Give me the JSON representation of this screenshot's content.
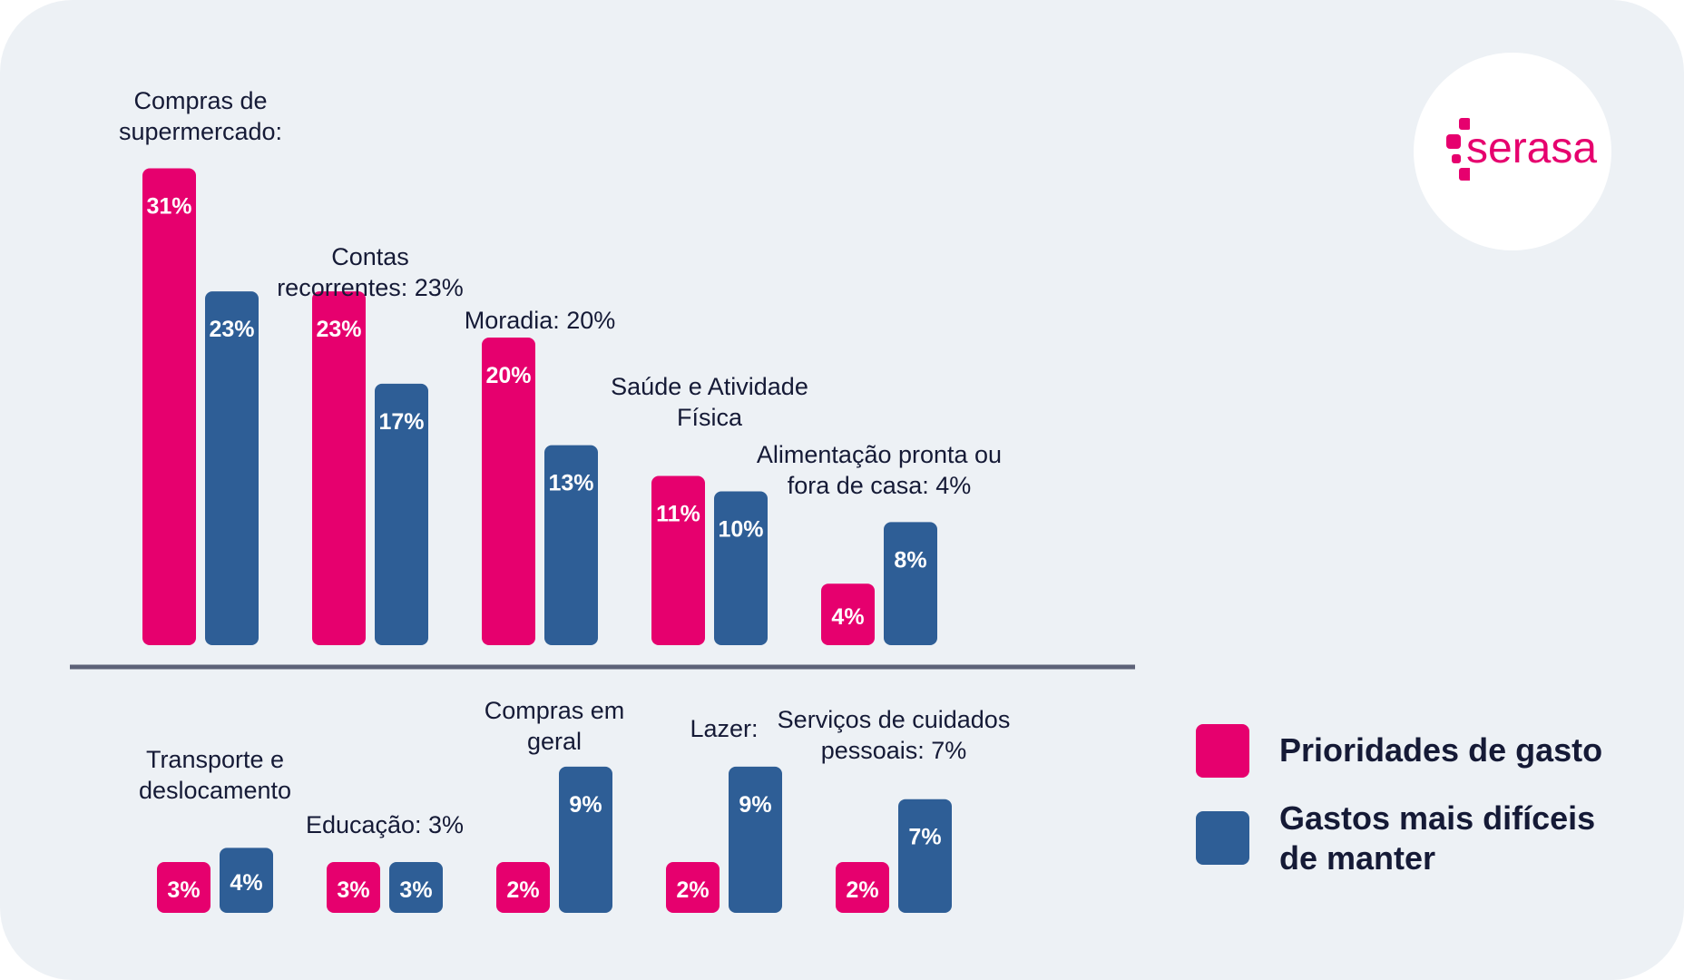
{
  "brand": {
    "logo_text": "serasa",
    "logo_icon": "serasa-dots-icon",
    "accent": "#e6006e"
  },
  "colors": {
    "prioridades": "#e6006e",
    "dificeis": "#2e5e96",
    "text": "#151a36",
    "background": "#edf1f5",
    "divider": "#5d6278"
  },
  "legend": {
    "items": [
      {
        "label": "Prioridades de gasto",
        "color": "#e6006e"
      },
      {
        "label": "Gastos mais difíceis de manter",
        "color": "#2e5e96"
      }
    ]
  },
  "chart_data": {
    "type": "bar",
    "title": "",
    "xlabel": "",
    "ylabel": "",
    "ylim": [
      0,
      31
    ],
    "grid": false,
    "legend_position": "bottom-right",
    "series_names": [
      "Prioridades de gasto",
      "Gastos mais difíceis de manter"
    ],
    "groups": [
      {
        "section": "top",
        "categories": [
          {
            "label": [
              "Compras de",
              "supermercado:"
            ],
            "values": [
              31,
              23
            ],
            "value_labels": [
              "31%",
              "23%"
            ]
          },
          {
            "label": [
              "Contas",
              "recorrentes: 23%"
            ],
            "values": [
              23,
              17
            ],
            "value_labels": [
              "23%",
              "17%"
            ]
          },
          {
            "label": [
              "Moradia: 20%"
            ],
            "values": [
              20,
              13
            ],
            "value_labels": [
              "20%",
              "13%"
            ]
          },
          {
            "label": [
              "Saúde e Atividade",
              "Física"
            ],
            "values": [
              11,
              10
            ],
            "value_labels": [
              "11%",
              "10%"
            ]
          },
          {
            "label": [
              "Alimentação pronta ou",
              "fora de casa: 4%"
            ],
            "values": [
              4,
              8
            ],
            "value_labels": [
              "4%",
              "8%"
            ]
          }
        ]
      },
      {
        "section": "bottom",
        "categories": [
          {
            "label": [
              "Transporte e",
              "deslocamento"
            ],
            "values": [
              3,
              4
            ],
            "value_labels": [
              "3%",
              "4%"
            ]
          },
          {
            "label": [
              "Educação: 3%"
            ],
            "values": [
              3,
              3
            ],
            "value_labels": [
              "3%",
              "3%"
            ]
          },
          {
            "label": [
              "Compras em",
              "geral"
            ],
            "values": [
              2,
              9
            ],
            "value_labels": [
              "2%",
              "9%"
            ]
          },
          {
            "label": [
              "Lazer:"
            ],
            "values": [
              2,
              9
            ],
            "value_labels": [
              "2%",
              "9%"
            ]
          },
          {
            "label": [
              "Serviços de cuidados",
              "pessoais: 7%"
            ],
            "values": [
              2,
              7
            ],
            "value_labels": [
              "2%",
              "7%"
            ]
          }
        ]
      }
    ]
  }
}
